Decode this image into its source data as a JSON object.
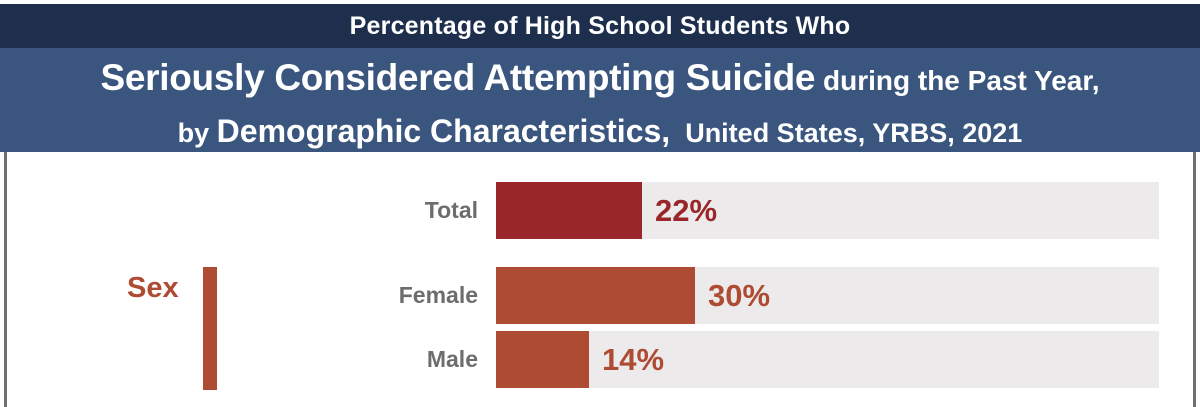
{
  "header": {
    "kicker": "Percentage of High School Students Who",
    "title_strong": "Seriously Considered Attempting Suicide",
    "title_rest": " during the Past Year,",
    "subtitle_prefix": "by ",
    "subtitle_strong": "Demographic Characteristics,",
    "subtitle_rest": " United States, YRBS, 2021"
  },
  "colors": {
    "navy": "#1e2f4e",
    "band_blue": "#3a567f",
    "total_red": "#992629",
    "sex_orange": "#ad4b33",
    "track_gray": "#ECEAEA",
    "label_gray": "#6d6d6d",
    "edge_gray": "#6e6e6e"
  },
  "chart_data": {
    "type": "bar",
    "orientation": "horizontal",
    "title": "Percentage of High School Students Who Seriously Considered Attempting Suicide during the Past Year, by Demographic Characteristics, United States, YRBS, 2021",
    "unit": "%",
    "xlim": [
      0,
      100
    ],
    "grid": false,
    "legend": false,
    "categories": [
      "Total",
      "Female",
      "Male"
    ],
    "values": [
      22,
      30,
      14
    ],
    "groups": [
      {
        "label": "Sex",
        "categories": [
          "Female",
          "Male"
        ]
      }
    ],
    "rows": [
      {
        "label": "Total",
        "value": 22,
        "display": "22%",
        "color": "#992629"
      },
      {
        "label": "Female",
        "value": 30,
        "display": "30%",
        "color": "#ad4b33"
      },
      {
        "label": "Male",
        "value": 14,
        "display": "14%",
        "color": "#ad4b33"
      }
    ]
  }
}
